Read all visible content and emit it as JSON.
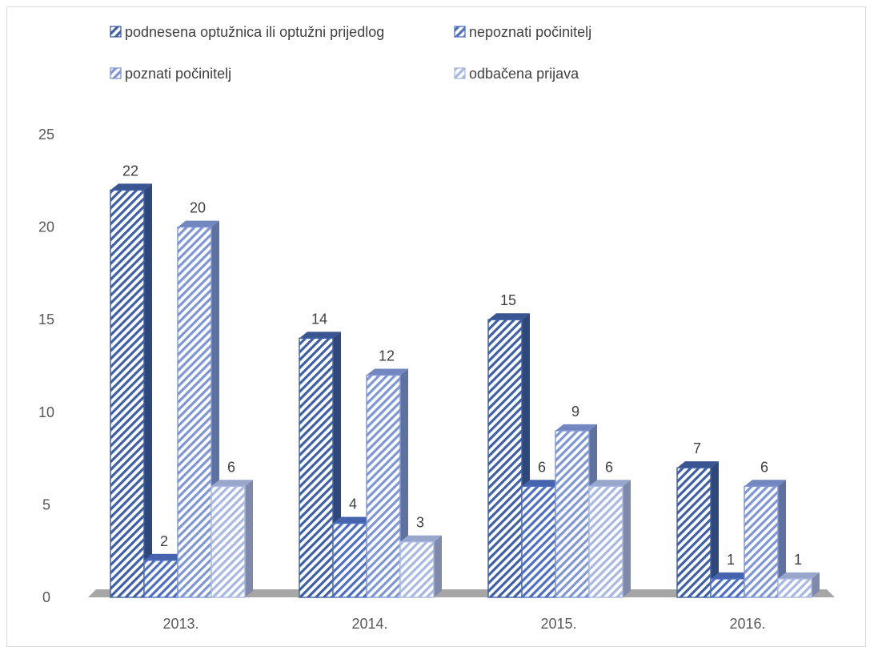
{
  "chart_data": {
    "type": "bar",
    "title": "",
    "xlabel": "",
    "ylabel": "",
    "ylim": [
      0,
      25
    ],
    "yticks": [
      0,
      5,
      10,
      15,
      20,
      25
    ],
    "grid": false,
    "legend_position": "top",
    "categories": [
      "2013.",
      "2014.",
      "2015.",
      "2016."
    ],
    "series": [
      {
        "name": "podnesena optužnica ili optužni prijedlog",
        "values": [
          22,
          14,
          15,
          7
        ],
        "color": "#3f5fa3"
      },
      {
        "name": "nepoznati počinitelj",
        "values": [
          2,
          4,
          6,
          1
        ],
        "color": "#4e6fc0"
      },
      {
        "name": "poznati počinitelj",
        "values": [
          20,
          12,
          9,
          6
        ],
        "color": "#7f96d4"
      },
      {
        "name": "odbačena prijava",
        "values": [
          6,
          3,
          6,
          1
        ],
        "color": "#a9b8e3"
      }
    ]
  }
}
